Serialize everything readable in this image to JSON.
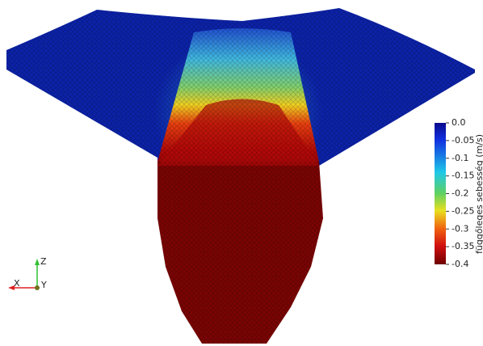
{
  "colorbar": {
    "title": "függőleges sebesség (m/s)",
    "ticks": [
      "0.0",
      "-0.05",
      "-0.1",
      "-0.15",
      "-0.2",
      "-0.25",
      "-0.3",
      "-0.35",
      "-0.4"
    ]
  },
  "axes_triad": {
    "x": "X",
    "y": "Y",
    "z": "Z"
  }
}
